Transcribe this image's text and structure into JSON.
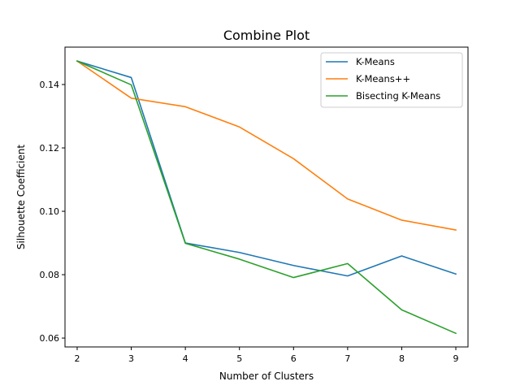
{
  "chart_data": {
    "type": "line",
    "title": "Combine Plot",
    "xlabel": "Number of Clusters",
    "ylabel": "Silhouette Coefficient",
    "x": [
      2,
      3,
      4,
      5,
      6,
      7,
      8,
      9
    ],
    "xlim": [
      1.775,
      9.225
    ],
    "ylim": [
      0.0572,
      0.1518
    ],
    "xticks": [
      "2",
      "3",
      "4",
      "5",
      "6",
      "7",
      "8",
      "9"
    ],
    "yticks": [
      {
        "value": 0.06,
        "label": "0.06"
      },
      {
        "value": 0.08,
        "label": "0.08"
      },
      {
        "value": 0.1,
        "label": "0.10"
      },
      {
        "value": 0.12,
        "label": "0.12"
      },
      {
        "value": 0.14,
        "label": "0.14"
      }
    ],
    "grid": false,
    "legend_position": "top-right",
    "series": [
      {
        "name": "K-Means",
        "color": "#1f77b4",
        "values": [
          0.1474,
          0.1422,
          0.09,
          0.087,
          0.0829,
          0.0796,
          0.0859,
          0.0802
        ]
      },
      {
        "name": "K-Means++",
        "color": "#ff7f0e",
        "values": [
          0.1474,
          0.1357,
          0.133,
          0.1266,
          0.1166,
          0.1039,
          0.0972,
          0.0941
        ]
      },
      {
        "name": "Bisecting K-Means",
        "color": "#2ca02c",
        "values": [
          0.1474,
          0.1399,
          0.0899,
          0.0849,
          0.0791,
          0.0835,
          0.0689,
          0.0615
        ]
      }
    ]
  }
}
